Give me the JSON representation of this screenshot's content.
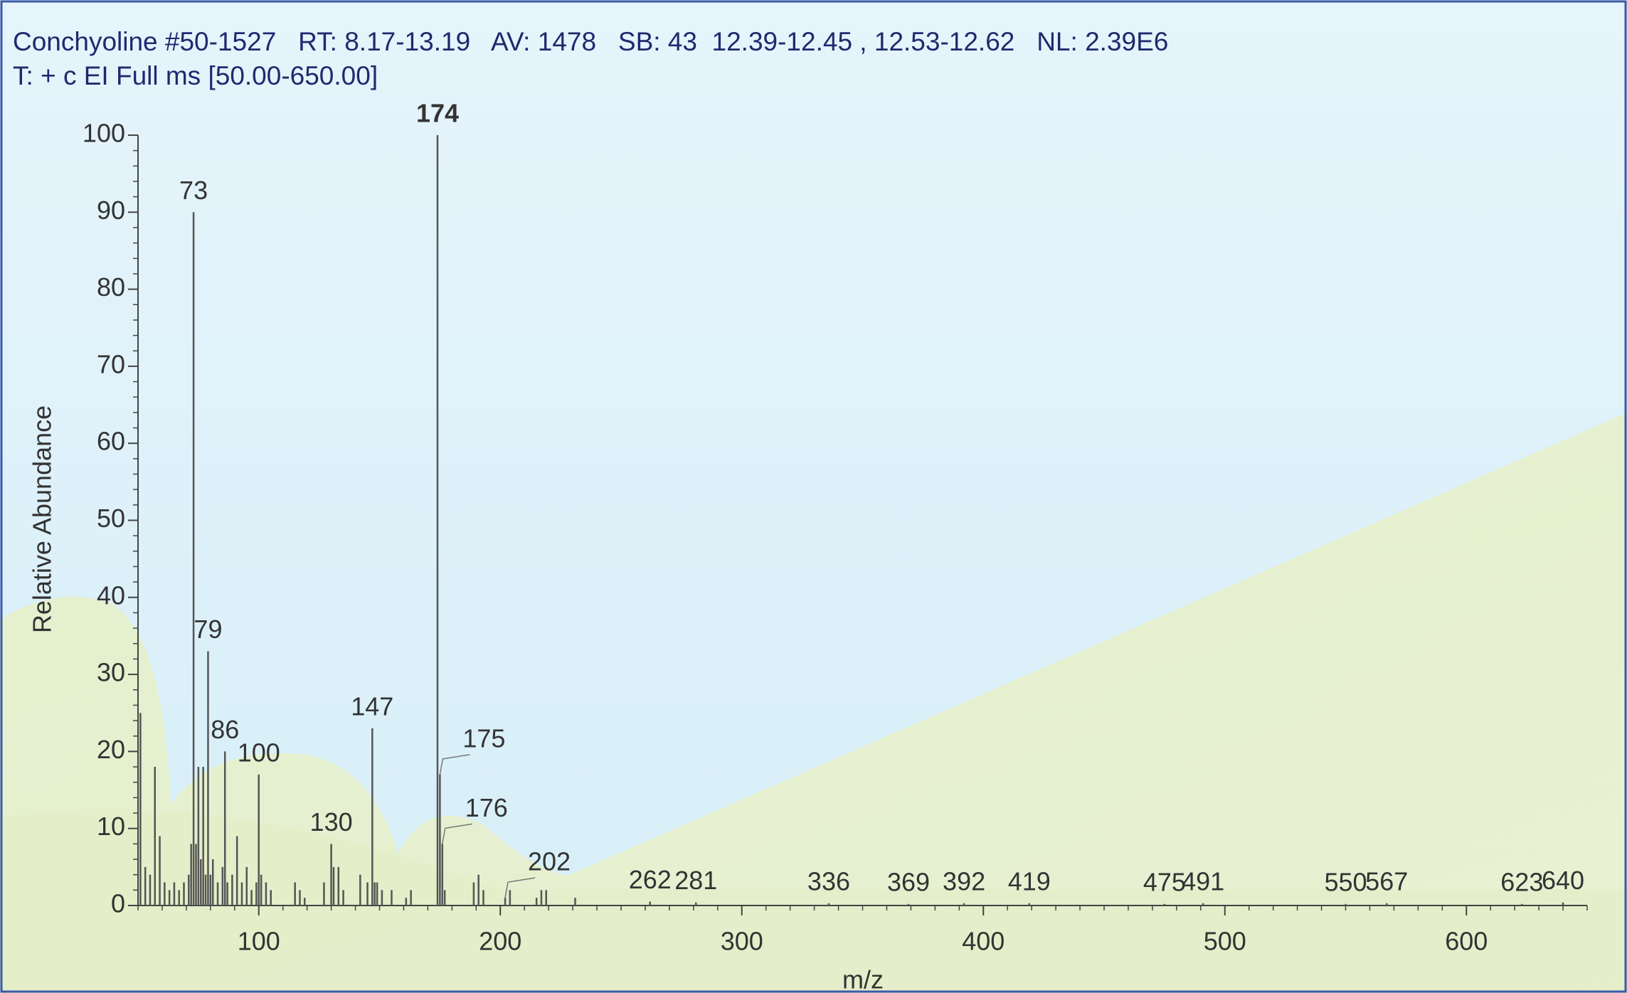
{
  "chart_data": {
    "type": "stick",
    "title": "Conchyoline #50-1527   RT: 8.17-13.19   AV: 1478   SB: 43  12.39-12.45 , 12.53-12.62   NL: 2.39E6",
    "subtitle": "T: + c EI Full ms [50.00-650.00]",
    "xlabel": "m/z",
    "ylabel": "Relative Abundance",
    "color": "#555555",
    "xlim": [
      50,
      650
    ],
    "ylim": [
      0,
      100
    ],
    "xticks": [
      100,
      200,
      300,
      400,
      500,
      600
    ],
    "yticks": [
      0,
      10,
      20,
      30,
      40,
      50,
      60,
      70,
      80,
      90,
      100
    ],
    "x": [
      51,
      53,
      55,
      57,
      59,
      61,
      63,
      65,
      67,
      69,
      71,
      72,
      73,
      74,
      75,
      76,
      77,
      78,
      79,
      80,
      81,
      83,
      85,
      86,
      87,
      89,
      91,
      93,
      95,
      97,
      99,
      100,
      101,
      103,
      105,
      115,
      117,
      119,
      127,
      130,
      131,
      133,
      135,
      142,
      145,
      147,
      148,
      149,
      151,
      155,
      161,
      163,
      174,
      175,
      176,
      177,
      189,
      191,
      193,
      202,
      204,
      215,
      217,
      219,
      231,
      262,
      281,
      336,
      369,
      392,
      419,
      475,
      491,
      550,
      567,
      623,
      640
    ],
    "values": [
      25,
      5,
      4,
      18,
      9,
      3,
      2,
      3,
      2,
      3,
      4,
      8,
      90,
      8,
      18,
      6,
      18,
      4,
      33,
      4,
      6,
      3,
      5,
      20,
      3,
      4,
      9,
      3,
      5,
      2,
      3,
      17,
      4,
      3,
      2,
      3,
      2,
      1,
      3,
      8,
      5,
      5,
      2,
      4,
      3,
      23,
      3,
      3,
      2,
      2,
      1,
      2,
      100,
      17,
      8,
      2,
      3,
      4,
      2,
      1,
      2,
      1,
      2,
      2,
      1,
      0.5,
      0.4,
      0.3,
      0.2,
      0.3,
      0.3,
      0.2,
      0.3,
      0.2,
      0.3,
      0.2,
      0.4
    ],
    "show_label": [
      false,
      false,
      false,
      false,
      false,
      false,
      false,
      false,
      false,
      false,
      false,
      false,
      true,
      false,
      false,
      false,
      false,
      false,
      true,
      false,
      false,
      false,
      false,
      true,
      false,
      false,
      false,
      false,
      false,
      false,
      false,
      true,
      false,
      false,
      false,
      false,
      false,
      false,
      false,
      true,
      false,
      false,
      false,
      false,
      false,
      true,
      false,
      false,
      false,
      false,
      false,
      false,
      true,
      true,
      true,
      false,
      false,
      false,
      false,
      true,
      false,
      false,
      false,
      false,
      false,
      true,
      true,
      true,
      true,
      true,
      true,
      true,
      true,
      true,
      true,
      true,
      true
    ]
  }
}
